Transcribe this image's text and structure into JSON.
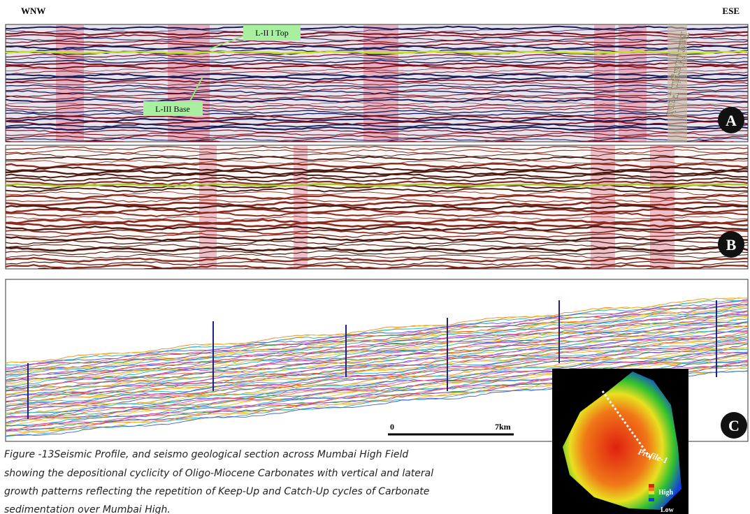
{
  "header": {
    "left": "WNW",
    "right": "ESE"
  },
  "panel_a": {
    "label": "A",
    "horizon_top": "L-II I Top",
    "horizon_base": "L-III Base",
    "fault": "East Margin Fault"
  },
  "panel_b": {
    "label": "B"
  },
  "panel_c": {
    "label": "C",
    "scale_start": "0",
    "scale_end": "7km"
  },
  "inset": {
    "profile": "Profile-1",
    "legend_high": "High",
    "legend_low": "Low"
  },
  "caption": [
    "Figure -13Seismic Profile, and seismo geological section across Mumbai High Field",
    "showing the depositional cyclicity of Oligo-Miocene Carbonates with vertical and lateral",
    "growth patterns reflecting the repetition of Keep-Up and Catch-Up cycles of Carbonate",
    "sedimentation over Mumbai High."
  ]
}
